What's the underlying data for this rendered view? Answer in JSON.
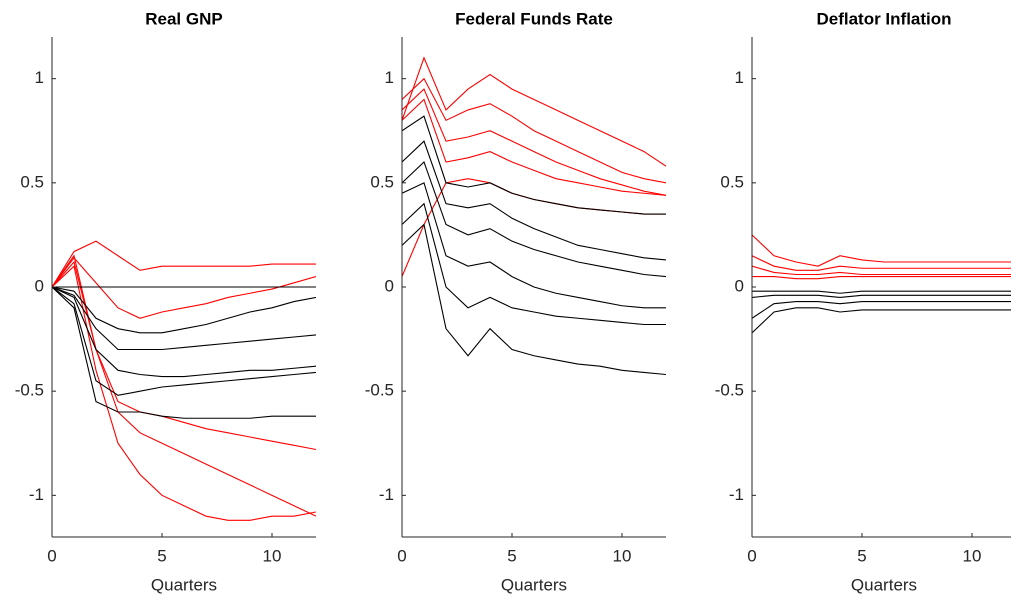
{
  "chart_data": [
    {
      "type": "line",
      "title": "Real GNP",
      "xlabel": "Quarters",
      "x": [
        0,
        1,
        2,
        3,
        4,
        5,
        6,
        7,
        8,
        9,
        10,
        11,
        12
      ],
      "xlim": [
        0,
        12
      ],
      "ylim": [
        -1.2,
        1.2
      ],
      "xticks": [
        0,
        5,
        10
      ],
      "yticks": [
        -1,
        -0.5,
        0,
        0.5,
        1
      ],
      "series": [
        {
          "color": "#ff0000",
          "values": [
            0,
            0.17,
            0.22,
            0.15,
            0.08,
            0.1,
            0.1,
            0.1,
            0.1,
            0.1,
            0.11,
            0.11,
            0.11
          ]
        },
        {
          "color": "#ff0000",
          "values": [
            0,
            0.15,
            -0.3,
            -0.6,
            -0.7,
            -0.75,
            -0.8,
            -0.85,
            -0.9,
            -0.95,
            -1.0,
            -1.05,
            -1.1
          ]
        },
        {
          "color": "#ff0000",
          "values": [
            0,
            0.1,
            -0.4,
            -0.75,
            -0.9,
            -1.0,
            -1.05,
            -1.1,
            -1.12,
            -1.12,
            -1.1,
            -1.1,
            -1.08
          ]
        },
        {
          "color": "#ff0000",
          "values": [
            0,
            0.12,
            -0.3,
            -0.55,
            -0.6,
            -0.62,
            -0.65,
            -0.68,
            -0.7,
            -0.72,
            -0.74,
            -0.76,
            -0.78
          ]
        },
        {
          "color": "#ff0000",
          "values": [
            0,
            0.14,
            0.02,
            -0.1,
            -0.15,
            -0.12,
            -0.1,
            -0.08,
            -0.05,
            -0.03,
            -0.01,
            0.02,
            0.05
          ]
        },
        {
          "color": "#000000",
          "values": [
            0,
            -0.1,
            -0.55,
            -0.6,
            -0.6,
            -0.62,
            -0.63,
            -0.63,
            -0.63,
            -0.63,
            -0.62,
            -0.62,
            -0.62
          ]
        },
        {
          "color": "#000000",
          "values": [
            0,
            -0.05,
            -0.3,
            -0.4,
            -0.42,
            -0.43,
            -0.43,
            -0.42,
            -0.41,
            -0.4,
            -0.4,
            -0.39,
            -0.38
          ]
        },
        {
          "color": "#000000",
          "values": [
            0,
            -0.02,
            -0.15,
            -0.2,
            -0.22,
            -0.22,
            -0.2,
            -0.18,
            -0.15,
            -0.12,
            -0.1,
            -0.07,
            -0.05
          ]
        },
        {
          "color": "#000000",
          "values": [
            0,
            0,
            0,
            0,
            0,
            0,
            0,
            0,
            0,
            0,
            0,
            0,
            0
          ]
        },
        {
          "color": "#000000",
          "values": [
            0,
            -0.08,
            -0.45,
            -0.52,
            -0.5,
            -0.48,
            -0.47,
            -0.46,
            -0.45,
            -0.44,
            -0.43,
            -0.42,
            -0.41
          ]
        },
        {
          "color": "#000000",
          "values": [
            0,
            -0.04,
            -0.2,
            -0.3,
            -0.3,
            -0.3,
            -0.29,
            -0.28,
            -0.27,
            -0.26,
            -0.25,
            -0.24,
            -0.23
          ]
        }
      ]
    },
    {
      "type": "line",
      "title": "Federal Funds Rate",
      "xlabel": "Quarters",
      "x": [
        0,
        1,
        2,
        3,
        4,
        5,
        6,
        7,
        8,
        9,
        10,
        11,
        12
      ],
      "xlim": [
        0,
        12
      ],
      "ylim": [
        -1.2,
        1.2
      ],
      "xticks": [
        0,
        5,
        10
      ],
      "yticks": [
        -1,
        -0.5,
        0,
        0.5,
        1
      ],
      "series": [
        {
          "color": "#ff0000",
          "values": [
            0.8,
            1.1,
            0.85,
            0.95,
            1.02,
            0.95,
            0.9,
            0.85,
            0.8,
            0.75,
            0.7,
            0.65,
            0.58
          ]
        },
        {
          "color": "#ff0000",
          "values": [
            0.9,
            1.0,
            0.8,
            0.85,
            0.88,
            0.82,
            0.75,
            0.7,
            0.65,
            0.6,
            0.55,
            0.52,
            0.5
          ]
        },
        {
          "color": "#ff0000",
          "values": [
            0.85,
            0.95,
            0.7,
            0.72,
            0.75,
            0.7,
            0.65,
            0.6,
            0.56,
            0.52,
            0.49,
            0.46,
            0.44
          ]
        },
        {
          "color": "#ff0000",
          "values": [
            0.8,
            0.9,
            0.6,
            0.62,
            0.65,
            0.6,
            0.56,
            0.52,
            0.5,
            0.48,
            0.46,
            0.45,
            0.44
          ]
        },
        {
          "color": "#ff0000",
          "values": [
            0.05,
            0.3,
            0.5,
            0.52,
            0.5,
            0.45,
            0.42,
            0.4,
            0.38,
            0.37,
            0.36,
            0.35,
            0.35
          ]
        },
        {
          "color": "#000000",
          "values": [
            0.75,
            0.82,
            0.5,
            0.48,
            0.5,
            0.45,
            0.42,
            0.4,
            0.38,
            0.37,
            0.36,
            0.35,
            0.35
          ]
        },
        {
          "color": "#000000",
          "values": [
            0.5,
            0.6,
            0.3,
            0.25,
            0.28,
            0.22,
            0.18,
            0.15,
            0.12,
            0.1,
            0.08,
            0.06,
            0.05
          ]
        },
        {
          "color": "#000000",
          "values": [
            0.3,
            0.4,
            0.0,
            -0.1,
            -0.05,
            -0.1,
            -0.12,
            -0.14,
            -0.15,
            -0.16,
            -0.17,
            -0.18,
            -0.18
          ]
        },
        {
          "color": "#000000",
          "values": [
            0.2,
            0.3,
            -0.2,
            -0.33,
            -0.2,
            -0.3,
            -0.33,
            -0.35,
            -0.37,
            -0.38,
            -0.4,
            -0.41,
            -0.42
          ]
        },
        {
          "color": "#000000",
          "values": [
            0.45,
            0.5,
            0.15,
            0.1,
            0.12,
            0.05,
            0.0,
            -0.03,
            -0.05,
            -0.07,
            -0.09,
            -0.1,
            -0.1
          ]
        },
        {
          "color": "#000000",
          "values": [
            0.6,
            0.7,
            0.4,
            0.38,
            0.4,
            0.33,
            0.28,
            0.24,
            0.2,
            0.18,
            0.16,
            0.14,
            0.13
          ]
        }
      ]
    },
    {
      "type": "line",
      "title": "Deflator Inflation",
      "xlabel": "Quarters",
      "x": [
        0,
        1,
        2,
        3,
        4,
        5,
        6,
        7,
        8,
        9,
        10,
        11,
        12
      ],
      "xlim": [
        0,
        12
      ],
      "ylim": [
        -1.2,
        1.2
      ],
      "xticks": [
        0,
        5,
        10
      ],
      "yticks": [
        -1,
        -0.5,
        0,
        0.5,
        1
      ],
      "series": [
        {
          "color": "#ff0000",
          "values": [
            0.25,
            0.15,
            0.12,
            0.1,
            0.15,
            0.13,
            0.12,
            0.12,
            0.12,
            0.12,
            0.12,
            0.12,
            0.12
          ]
        },
        {
          "color": "#ff0000",
          "values": [
            0.15,
            0.1,
            0.08,
            0.08,
            0.1,
            0.09,
            0.09,
            0.09,
            0.09,
            0.09,
            0.09,
            0.09,
            0.09
          ]
        },
        {
          "color": "#ff0000",
          "values": [
            0.1,
            0.07,
            0.06,
            0.06,
            0.07,
            0.06,
            0.06,
            0.06,
            0.06,
            0.06,
            0.06,
            0.06,
            0.06
          ]
        },
        {
          "color": "#ff0000",
          "values": [
            0.05,
            0.05,
            0.04,
            0.04,
            0.05,
            0.05,
            0.05,
            0.05,
            0.05,
            0.05,
            0.05,
            0.05,
            0.05
          ]
        },
        {
          "color": "#000000",
          "values": [
            -0.22,
            -0.12,
            -0.1,
            -0.1,
            -0.12,
            -0.11,
            -0.11,
            -0.11,
            -0.11,
            -0.11,
            -0.11,
            -0.11,
            -0.11
          ]
        },
        {
          "color": "#000000",
          "values": [
            -0.15,
            -0.08,
            -0.07,
            -0.07,
            -0.08,
            -0.07,
            -0.07,
            -0.07,
            -0.07,
            -0.07,
            -0.07,
            -0.07,
            -0.07
          ]
        },
        {
          "color": "#000000",
          "values": [
            -0.05,
            -0.04,
            -0.04,
            -0.04,
            -0.05,
            -0.04,
            -0.04,
            -0.04,
            -0.04,
            -0.04,
            -0.04,
            -0.04,
            -0.04
          ]
        },
        {
          "color": "#000000",
          "values": [
            -0.02,
            -0.02,
            -0.02,
            -0.02,
            -0.03,
            -0.02,
            -0.02,
            -0.02,
            -0.02,
            -0.02,
            -0.02,
            -0.02,
            -0.02
          ]
        }
      ]
    }
  ]
}
